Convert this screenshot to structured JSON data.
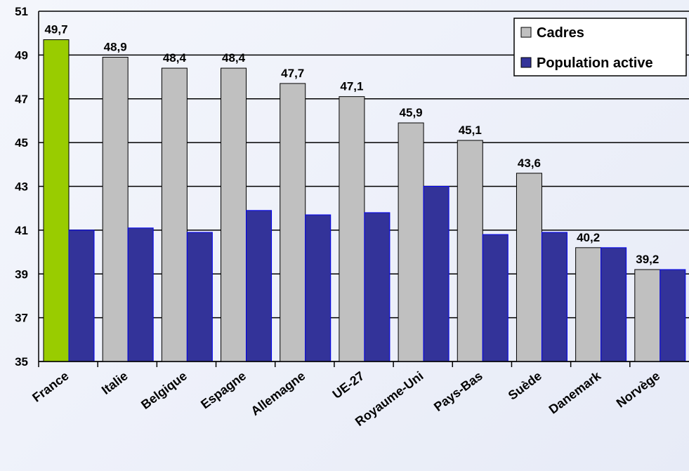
{
  "chart_data": {
    "type": "bar",
    "title": "",
    "xlabel": "",
    "ylabel": "",
    "ylim": [
      35,
      51
    ],
    "yticks": [
      35,
      37,
      39,
      41,
      43,
      45,
      47,
      49,
      51
    ],
    "grid": true,
    "legend_position": "top-right",
    "categories": [
      "France",
      "Italie",
      "Belgique",
      "Espagne",
      "Allemagne",
      "UE-27",
      "Royaume-Uni",
      "Pays-Bas",
      "Suède",
      "Danemark",
      "Norvège"
    ],
    "series": [
      {
        "name": "Cadres",
        "color": "#c0c0c0",
        "highlight": {
          "index": 0,
          "color": "#99cc00"
        },
        "values": [
          49.7,
          48.9,
          48.4,
          48.4,
          47.7,
          47.1,
          45.9,
          45.1,
          43.6,
          40.2,
          39.2
        ],
        "labels": [
          "49,7",
          "48,9",
          "48,4",
          "48,4",
          "47,7",
          "47,1",
          "45,9",
          "45,1",
          "43,6",
          "40,2",
          "39,2"
        ]
      },
      {
        "name": "Population active",
        "color": "#333399",
        "values": [
          41.0,
          41.1,
          40.9,
          41.9,
          41.7,
          41.8,
          43.0,
          40.8,
          40.9,
          40.2,
          39.2
        ]
      }
    ]
  }
}
